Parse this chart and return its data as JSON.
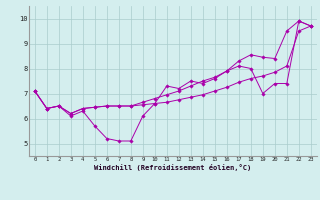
{
  "title": "",
  "xlabel": "Windchill (Refroidissement éolien,°C)",
  "ylabel": "",
  "xlim": [
    -0.5,
    23.5
  ],
  "ylim": [
    4.5,
    10.5
  ],
  "yticks": [
    5,
    6,
    7,
    8,
    9,
    10
  ],
  "xticks": [
    0,
    1,
    2,
    3,
    4,
    5,
    6,
    7,
    8,
    9,
    10,
    11,
    12,
    13,
    14,
    15,
    16,
    17,
    18,
    19,
    20,
    21,
    22,
    23
  ],
  "background_color": "#d4eeee",
  "line_color": "#aa00aa",
  "grid_color": "#aacccc",
  "lines": [
    {
      "x": [
        0,
        1,
        2,
        3,
        4,
        5,
        6,
        7,
        8,
        9,
        10,
        11,
        12,
        13,
        14,
        15,
        16,
        17,
        18,
        19,
        20,
        21,
        22,
        23
      ],
      "y": [
        7.1,
        6.4,
        6.5,
        6.1,
        6.3,
        5.7,
        5.2,
        5.1,
        5.1,
        6.1,
        6.6,
        7.3,
        7.2,
        7.5,
        7.4,
        7.6,
        7.9,
        8.1,
        8.0,
        7.0,
        7.4,
        7.4,
        9.9,
        9.7
      ]
    },
    {
      "x": [
        0,
        1,
        2,
        3,
        4,
        5,
        6,
        7,
        8,
        9,
        10,
        11,
        12,
        13,
        14,
        15,
        16,
        17,
        18,
        19,
        20,
        21,
        22,
        23
      ],
      "y": [
        7.1,
        6.4,
        6.5,
        6.2,
        6.4,
        6.45,
        6.5,
        6.5,
        6.5,
        6.55,
        6.6,
        6.65,
        6.75,
        6.85,
        6.95,
        7.1,
        7.25,
        7.45,
        7.6,
        7.7,
        7.85,
        8.1,
        9.5,
        9.7
      ]
    },
    {
      "x": [
        0,
        1,
        2,
        3,
        4,
        5,
        6,
        7,
        8,
        9,
        10,
        11,
        12,
        13,
        14,
        15,
        16,
        17,
        18,
        19,
        20,
        21,
        22,
        23
      ],
      "y": [
        7.1,
        6.4,
        6.5,
        6.2,
        6.4,
        6.45,
        6.5,
        6.5,
        6.5,
        6.65,
        6.8,
        6.95,
        7.1,
        7.3,
        7.5,
        7.65,
        7.9,
        8.3,
        8.55,
        8.45,
        8.4,
        9.5,
        9.9,
        9.7
      ]
    }
  ]
}
